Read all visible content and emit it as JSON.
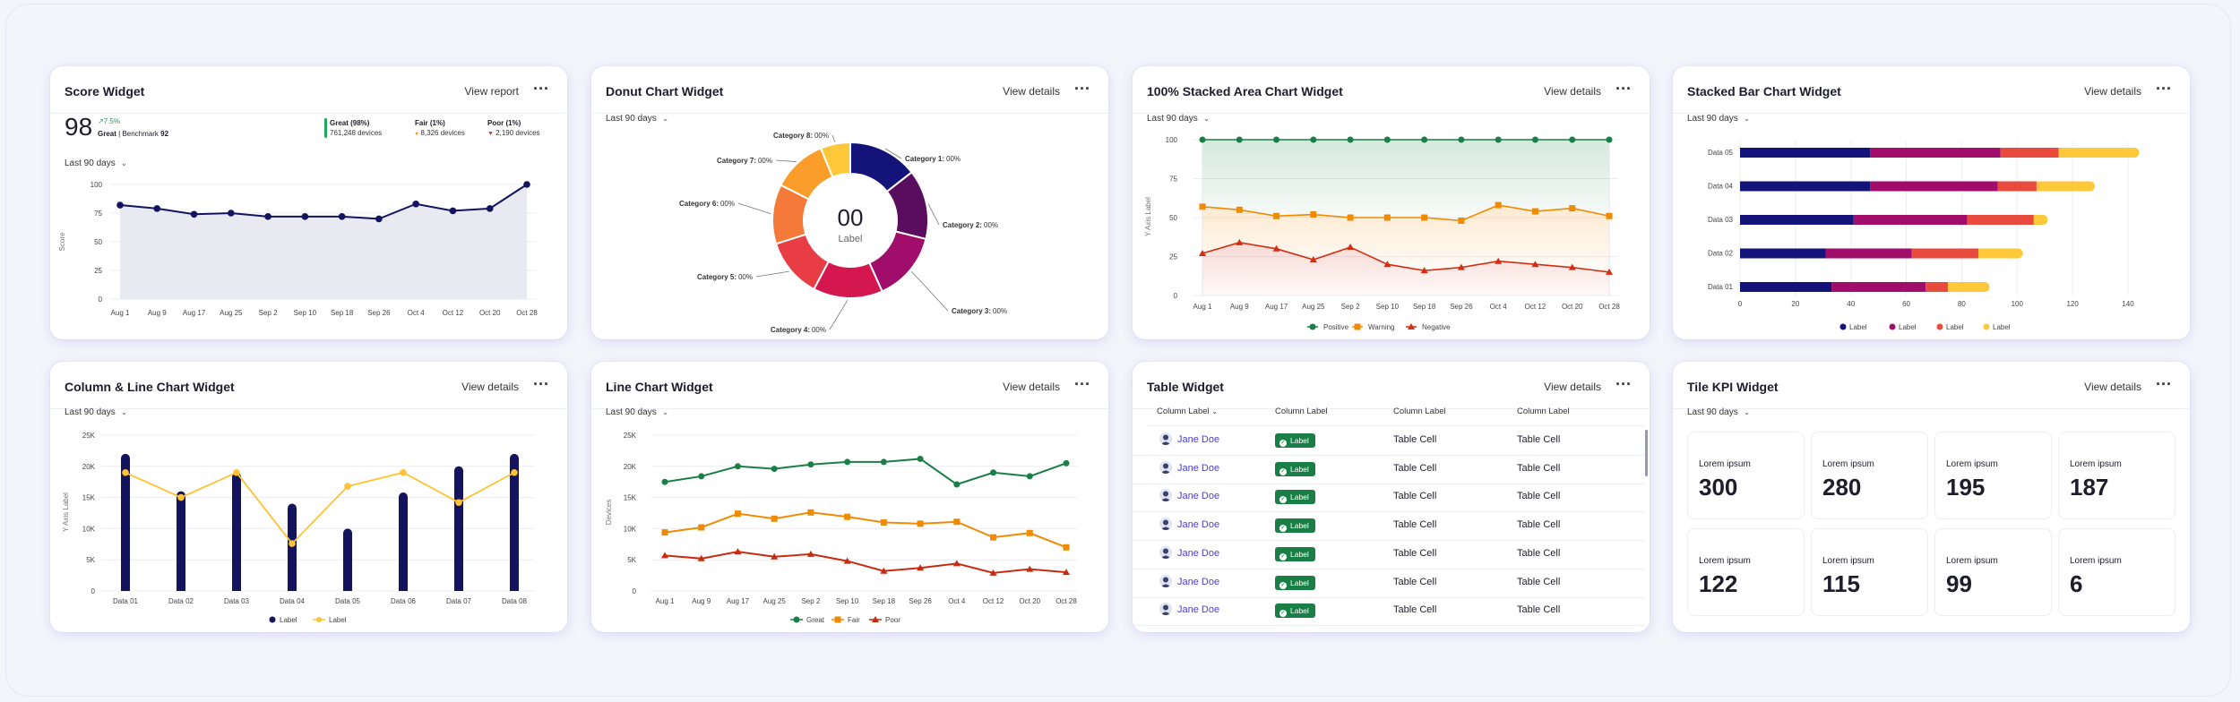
{
  "period_label": "Last 90 days",
  "more_icon": "more-horizontal-icon",
  "score_widget": {
    "title": "Score Widget",
    "action": "View report",
    "score": "98",
    "delta": "7.5%",
    "rating": "Great",
    "benchmark_text": "| Benchmark",
    "benchmark_value": "92",
    "legend": [
      {
        "label": "Great (98%)",
        "value": "761,248 devices",
        "color": "#1fa85c"
      },
      {
        "label": "Fair (1%)",
        "value": "8,326 devices",
        "color": "#f0a020"
      },
      {
        "label": "Poor (1%)",
        "value": "2,190 devices",
        "color": "#d83a26"
      }
    ],
    "ylabel": "Score",
    "chart_data": {
      "type": "area",
      "x": [
        "Aug 1",
        "Aug 9",
        "Aug 17",
        "Aug 25",
        "Sep 2",
        "Sep 10",
        "Sep 18",
        "Sep 26",
        "Oct 4",
        "Oct 12",
        "Oct 20",
        "Oct 28"
      ],
      "values": [
        82,
        79,
        74,
        75,
        72,
        72,
        72,
        70,
        83,
        77,
        79,
        100
      ],
      "yticks": [
        "0",
        "25",
        "50",
        "75",
        "100"
      ],
      "ylim": [
        0,
        100
      ]
    }
  },
  "donut_widget": {
    "title": "Donut Chart Widget",
    "action": "View details",
    "center_value": "00",
    "center_label": "Label",
    "chart_data": {
      "type": "pie",
      "slices": [
        {
          "name": "Category 1:",
          "pct": "00%",
          "value": 14,
          "color": "#13137a"
        },
        {
          "name": "Category 2:",
          "pct": "00%",
          "value": 14,
          "color": "#5a0c5e"
        },
        {
          "name": "Category 3:",
          "pct": "00%",
          "value": 14,
          "color": "#a00d6b"
        },
        {
          "name": "Category 4:",
          "pct": "00%",
          "value": 14,
          "color": "#d4184f"
        },
        {
          "name": "Category 5:",
          "pct": "00%",
          "value": 12,
          "color": "#e83d45"
        },
        {
          "name": "Category 6:",
          "pct": "00%",
          "value": 12,
          "color": "#f57a3a"
        },
        {
          "name": "Category 7:",
          "pct": "00%",
          "value": 11,
          "color": "#fb9d2a"
        },
        {
          "name": "Category 8:",
          "pct": "00%",
          "value": 6,
          "color": "#fdc93a"
        }
      ]
    }
  },
  "stacked_area_widget": {
    "title": "100% Stacked Area Chart Widget",
    "action": "View details",
    "ylabel": "Y Axis Label",
    "chart_data": {
      "type": "area",
      "x": [
        "Aug 1",
        "Aug 9",
        "Aug 17",
        "Aug 25",
        "Sep 2",
        "Sep 10",
        "Sep 18",
        "Sep 26",
        "Oct 4",
        "Oct 12",
        "Oct 20",
        "Oct 28"
      ],
      "yticks": [
        "0",
        "25",
        "50",
        "75",
        "100"
      ],
      "ylim": [
        0,
        100
      ],
      "series": [
        {
          "name": "Positive",
          "color": "#1a7f46",
          "values": [
            100,
            100,
            100,
            100,
            100,
            100,
            100,
            100,
            100,
            100,
            100,
            100
          ]
        },
        {
          "name": "Warning",
          "color": "#f08a00",
          "values": [
            57,
            55,
            51,
            52,
            50,
            50,
            50,
            48,
            58,
            54,
            56,
            51
          ]
        },
        {
          "name": "Negative",
          "color": "#d42e12",
          "values": [
            27,
            34,
            30,
            23,
            31,
            20,
            16,
            18,
            22,
            20,
            18,
            15
          ]
        }
      ]
    }
  },
  "stacked_bar_widget": {
    "title": "Stacked Bar Chart Widget",
    "action": "View details",
    "chart_data": {
      "type": "bar",
      "orientation": "horizontal",
      "categories": [
        "Data 05",
        "Data 04",
        "Data 03",
        "Data 02",
        "Data 01"
      ],
      "xticks": [
        "0",
        "20",
        "40",
        "60",
        "80",
        "100",
        "120",
        "140"
      ],
      "xlim": [
        0,
        140
      ],
      "series": [
        {
          "name": "Label",
          "color": "#13137a",
          "values": [
            47,
            47,
            41,
            31,
            33
          ]
        },
        {
          "name": "Label",
          "color": "#a00d6b",
          "values": [
            47,
            46,
            41,
            31,
            34
          ]
        },
        {
          "name": "Label",
          "color": "#e84a3e",
          "values": [
            21,
            14,
            24,
            24,
            8
          ]
        },
        {
          "name": "Label",
          "color": "#fdc93a",
          "values": [
            29,
            21,
            5,
            16,
            15
          ]
        }
      ]
    }
  },
  "column_line_widget": {
    "title": "Column & Line Chart Widget",
    "action": "View details",
    "ylabel": "Y Axis Label",
    "chart_data": {
      "type": "bar",
      "categories": [
        "Data 01",
        "Data 02",
        "Data 03",
        "Data 04",
        "Data 05",
        "Data 06",
        "Data 07",
        "Data 08"
      ],
      "yticks": [
        "0",
        "5K",
        "10K",
        "15K",
        "20K",
        "25K"
      ],
      "ylim": [
        0,
        25000
      ],
      "series": [
        {
          "name": "Label",
          "kind": "column",
          "color": "#13135e",
          "values": [
            22000,
            16000,
            19000,
            14000,
            10000,
            15800,
            20000,
            22000
          ]
        },
        {
          "name": "Label",
          "kind": "line",
          "color": "#fdc334",
          "values": [
            19000,
            15000,
            19000,
            7600,
            16800,
            19000,
            14200,
            19000
          ]
        }
      ]
    }
  },
  "line_widget": {
    "title": "Line Chart Widget",
    "action": "View details",
    "ylabel": "Devices",
    "chart_data": {
      "type": "line",
      "x": [
        "Aug 1",
        "Aug 9",
        "Aug 17",
        "Aug 25",
        "Sep 2",
        "Sep 10",
        "Sep 18",
        "Sep 26",
        "Oct 4",
        "Oct 12",
        "Oct 20",
        "Oct 28"
      ],
      "yticks": [
        "0",
        "5K",
        "10K",
        "15K",
        "20K",
        "25K"
      ],
      "ylim": [
        0,
        25000
      ],
      "series": [
        {
          "name": "Great",
          "color": "#1a7f46",
          "values": [
            17500,
            18400,
            20000,
            19600,
            20300,
            20700,
            20700,
            21200,
            17100,
            19000,
            18400,
            20500
          ]
        },
        {
          "name": "Fair",
          "color": "#f08a00",
          "values": [
            9400,
            10200,
            12400,
            11600,
            12600,
            11900,
            11000,
            10800,
            11100,
            8600,
            9300,
            7000
          ]
        },
        {
          "name": "Poor",
          "color": "#c82a10",
          "values": [
            5700,
            5200,
            6300,
            5500,
            5900,
            4800,
            3200,
            3700,
            4400,
            2900,
            3500,
            3000
          ]
        }
      ]
    }
  },
  "table_widget": {
    "title": "Table Widget",
    "action": "View details",
    "headers": [
      "Column Label",
      "Column Label",
      "Column Label",
      "Column Label"
    ],
    "rows": [
      {
        "name": "Jane Doe",
        "badge": "Label",
        "c3": "Table Cell",
        "c4": "Table Cell"
      },
      {
        "name": "Jane Doe",
        "badge": "Label",
        "c3": "Table Cell",
        "c4": "Table Cell"
      },
      {
        "name": "Jane Doe",
        "badge": "Label",
        "c3": "Table Cell",
        "c4": "Table Cell"
      },
      {
        "name": "Jane Doe",
        "badge": "Label",
        "c3": "Table Cell",
        "c4": "Table Cell"
      },
      {
        "name": "Jane Doe",
        "badge": "Label",
        "c3": "Table Cell",
        "c4": "Table Cell"
      },
      {
        "name": "Jane Doe",
        "badge": "Label",
        "c3": "Table Cell",
        "c4": "Table Cell"
      },
      {
        "name": "Jane Doe",
        "badge": "Label",
        "c3": "Table Cell",
        "c4": "Table Cell"
      }
    ]
  },
  "kpi_widget": {
    "title": "Tile KPI Widget",
    "action": "View details",
    "tiles": [
      {
        "label": "Lorem ipsum",
        "value": "300"
      },
      {
        "label": "Lorem ipsum",
        "value": "280"
      },
      {
        "label": "Lorem ipsum",
        "value": "195"
      },
      {
        "label": "Lorem ipsum",
        "value": "187"
      },
      {
        "label": "Lorem ipsum",
        "value": "122"
      },
      {
        "label": "Lorem ipsum",
        "value": "115"
      },
      {
        "label": "Lorem ipsum",
        "value": "99"
      },
      {
        "label": "Lorem ipsum",
        "value": "6"
      }
    ]
  }
}
